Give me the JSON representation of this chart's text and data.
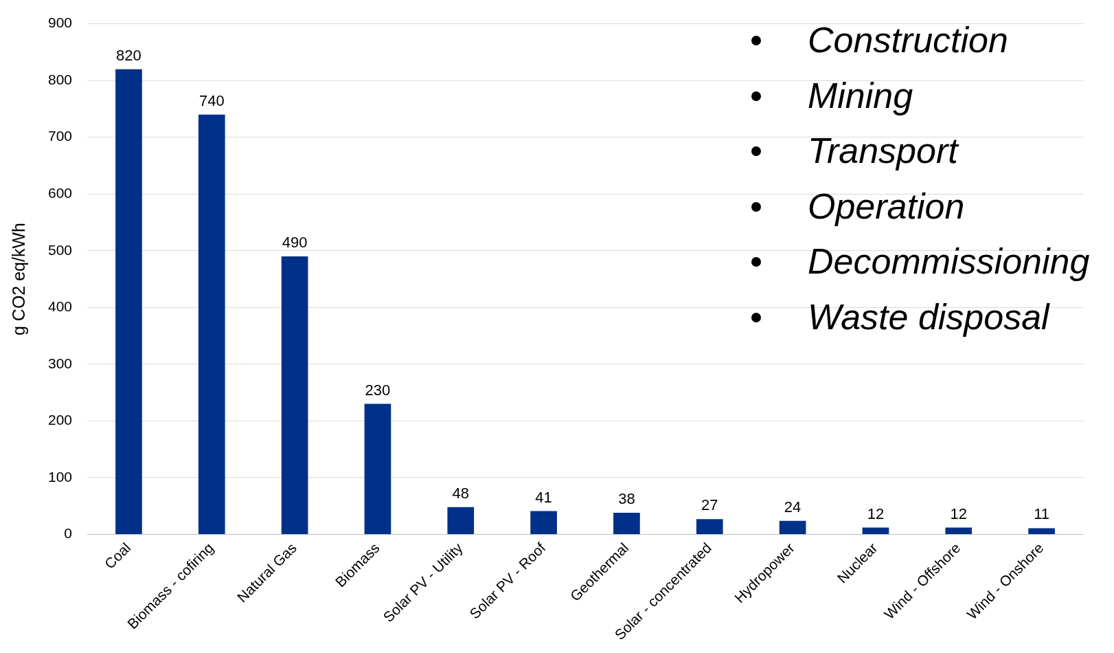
{
  "chart_data": {
    "type": "bar",
    "ylabel": "g CO2 eq/kWh",
    "categories": [
      "Coal",
      "Biomass - cofiring",
      "Natural Gas",
      "Biomass",
      "Solar PV - Utility",
      "Solar PV - Roof",
      "Geothermal",
      "Solar - concentrated",
      "Hydropower",
      "Nuclear",
      "Wind - Offshore",
      "Wind - Onshore"
    ],
    "values": [
      820,
      740,
      490,
      230,
      48,
      41,
      38,
      27,
      24,
      12,
      12,
      11
    ],
    "color": "#003087",
    "ylim": [
      0,
      900
    ],
    "yticks": [
      0,
      100,
      200,
      300,
      400,
      500,
      600,
      700,
      800,
      900
    ],
    "grid": "y",
    "data_labels": true,
    "legend": false,
    "annotations": [
      "Construction",
      "Mining",
      "Transport",
      "Operation",
      "Decommissioning",
      "Waste disposal"
    ]
  }
}
